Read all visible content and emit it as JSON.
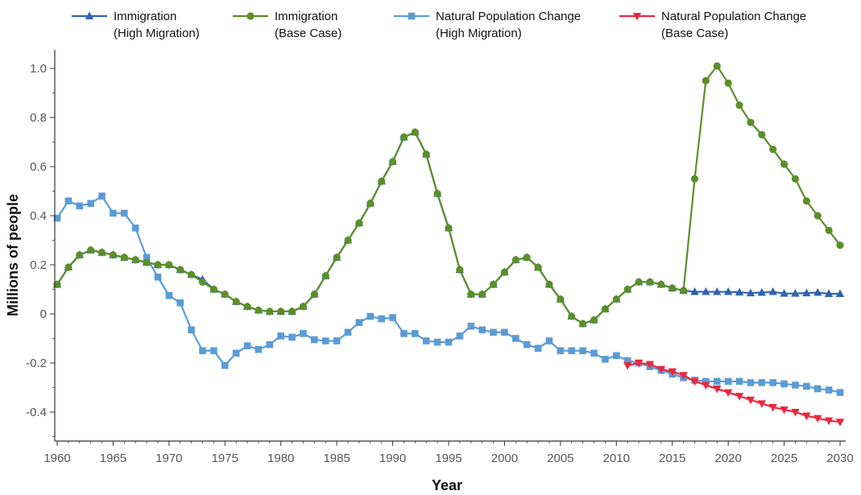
{
  "chart_data": {
    "type": "line",
    "title": "",
    "xlabel": "Year",
    "ylabel": "Millions of people",
    "xlim": [
      1960,
      2030
    ],
    "ylim": [
      -0.5,
      1.05
    ],
    "x_ticks": [
      1960,
      1965,
      1970,
      1975,
      1980,
      1985,
      1990,
      1995,
      2000,
      2005,
      2010,
      2015,
      2020,
      2025,
      2030
    ],
    "y_ticks": [
      -0.4,
      -0.2,
      0,
      0.2,
      0.4,
      0.6,
      0.8,
      1.0
    ],
    "y_tick_labels": [
      "-0.4",
      "-0.2",
      "0",
      "0.2",
      "0.4",
      "0.6",
      "0.8",
      "1.0"
    ],
    "grid": false,
    "legend_position": "top",
    "series": [
      {
        "name_lines": [
          "Immigration",
          "(High Migration)"
        ],
        "color": "#2e62b0",
        "marker": "triangle-up",
        "x": [
          1960,
          1961,
          1962,
          1963,
          1964,
          1965,
          1966,
          1967,
          1968,
          1969,
          1970,
          1971,
          1972,
          1973,
          1974,
          1975,
          1976,
          1977,
          1978,
          1979,
          1980,
          1981,
          1982,
          1983,
          1984,
          1985,
          1986,
          1987,
          1988,
          1989,
          1990,
          1991,
          1992,
          1993,
          1994,
          1995,
          1996,
          1997,
          1998,
          1999,
          2000,
          2001,
          2002,
          2003,
          2004,
          2005,
          2006,
          2007,
          2008,
          2009,
          2010,
          2011,
          2012,
          2013,
          2014,
          2015,
          2016,
          2017,
          2018,
          2019,
          2020,
          2021,
          2022,
          2023,
          2024,
          2025,
          2026,
          2027,
          2028,
          2029,
          2030
        ],
        "y": [
          0.12,
          0.19,
          0.24,
          0.26,
          0.25,
          0.24,
          0.23,
          0.22,
          0.21,
          0.2,
          0.2,
          0.18,
          0.16,
          0.14,
          0.1,
          0.08,
          0.05,
          0.03,
          0.015,
          0.01,
          0.01,
          0.01,
          0.03,
          0.08,
          0.155,
          0.23,
          0.3,
          0.37,
          0.45,
          0.54,
          0.62,
          0.72,
          0.74,
          0.65,
          0.49,
          0.35,
          0.18,
          0.08,
          0.08,
          0.12,
          0.17,
          0.22,
          0.23,
          0.19,
          0.12,
          0.06,
          -0.01,
          -0.04,
          -0.025,
          0.02,
          0.06,
          0.1,
          0.13,
          0.13,
          0.12,
          0.105,
          0.095,
          0.09,
          0.09,
          0.09,
          0.09,
          0.088,
          0.085,
          0.087,
          0.09,
          0.083,
          0.083,
          0.085,
          0.087,
          0.082,
          0.082
        ]
      },
      {
        "name_lines": [
          "Immigration",
          "(Base Case)"
        ],
        "color": "#5a8f29",
        "marker": "circle",
        "x": [
          1960,
          1961,
          1962,
          1963,
          1964,
          1965,
          1966,
          1967,
          1968,
          1969,
          1970,
          1971,
          1972,
          1973,
          1974,
          1975,
          1976,
          1977,
          1978,
          1979,
          1980,
          1981,
          1982,
          1983,
          1984,
          1985,
          1986,
          1987,
          1988,
          1989,
          1990,
          1991,
          1992,
          1993,
          1994,
          1995,
          1996,
          1997,
          1998,
          1999,
          2000,
          2001,
          2002,
          2003,
          2004,
          2005,
          2006,
          2007,
          2008,
          2009,
          2010,
          2011,
          2012,
          2013,
          2014,
          2015,
          2016,
          2017,
          2018,
          2019,
          2020,
          2021,
          2022,
          2023,
          2024,
          2025,
          2026,
          2027,
          2028,
          2029,
          2030
        ],
        "y": [
          0.12,
          0.19,
          0.24,
          0.26,
          0.25,
          0.24,
          0.23,
          0.22,
          0.21,
          0.2,
          0.2,
          0.18,
          0.16,
          0.13,
          0.1,
          0.08,
          0.05,
          0.03,
          0.015,
          0.01,
          0.01,
          0.01,
          0.03,
          0.08,
          0.155,
          0.23,
          0.3,
          0.37,
          0.45,
          0.54,
          0.62,
          0.72,
          0.74,
          0.65,
          0.49,
          0.35,
          0.18,
          0.08,
          0.08,
          0.12,
          0.17,
          0.22,
          0.23,
          0.19,
          0.12,
          0.06,
          -0.01,
          -0.04,
          -0.025,
          0.02,
          0.06,
          0.1,
          0.13,
          0.13,
          0.12,
          0.105,
          0.095,
          0.55,
          0.95,
          1.01,
          0.94,
          0.85,
          0.78,
          0.73,
          0.67,
          0.61,
          0.55,
          0.46,
          0.4,
          0.34,
          0.28
        ]
      },
      {
        "name_lines": [
          "Natural Population Change",
          "(High Migration)"
        ],
        "color": "#5b9bd5",
        "marker": "square",
        "x": [
          1960,
          1961,
          1962,
          1963,
          1964,
          1965,
          1966,
          1967,
          1968,
          1969,
          1970,
          1971,
          1972,
          1973,
          1974,
          1975,
          1976,
          1977,
          1978,
          1979,
          1980,
          1981,
          1982,
          1983,
          1984,
          1985,
          1986,
          1987,
          1988,
          1989,
          1990,
          1991,
          1992,
          1993,
          1994,
          1995,
          1996,
          1997,
          1998,
          1999,
          2000,
          2001,
          2002,
          2003,
          2004,
          2005,
          2006,
          2007,
          2008,
          2009,
          2010,
          2011,
          2012,
          2013,
          2014,
          2015,
          2016,
          2017,
          2018,
          2019,
          2020,
          2021,
          2022,
          2023,
          2024,
          2025,
          2026,
          2027,
          2028,
          2029,
          2030
        ],
        "y": [
          0.39,
          0.46,
          0.44,
          0.45,
          0.48,
          0.41,
          0.41,
          0.35,
          0.23,
          0.15,
          0.075,
          0.045,
          -0.065,
          -0.15,
          -0.15,
          -0.21,
          -0.16,
          -0.13,
          -0.145,
          -0.125,
          -0.09,
          -0.095,
          -0.08,
          -0.105,
          -0.11,
          -0.11,
          -0.075,
          -0.035,
          -0.01,
          -0.02,
          -0.015,
          -0.08,
          -0.08,
          -0.11,
          -0.115,
          -0.115,
          -0.09,
          -0.05,
          -0.065,
          -0.075,
          -0.075,
          -0.1,
          -0.125,
          -0.14,
          -0.11,
          -0.15,
          -0.15,
          -0.15,
          -0.16,
          -0.185,
          -0.17,
          -0.19,
          -0.2,
          -0.215,
          -0.23,
          -0.245,
          -0.26,
          -0.27,
          -0.275,
          -0.275,
          -0.275,
          -0.275,
          -0.28,
          -0.28,
          -0.28,
          -0.285,
          -0.29,
          -0.295,
          -0.305,
          -0.31,
          -0.32
        ]
      },
      {
        "name_lines": [
          "Natural Population Change",
          "(Base Case)"
        ],
        "color": "#e8283e",
        "marker": "triangle-down",
        "x": [
          2011,
          2012,
          2013,
          2014,
          2015,
          2016,
          2017,
          2018,
          2019,
          2020,
          2021,
          2022,
          2023,
          2024,
          2025,
          2026,
          2027,
          2028,
          2029,
          2030
        ],
        "y": [
          -0.21,
          -0.2,
          -0.205,
          -0.225,
          -0.235,
          -0.25,
          -0.275,
          -0.29,
          -0.305,
          -0.32,
          -0.335,
          -0.35,
          -0.365,
          -0.38,
          -0.39,
          -0.4,
          -0.415,
          -0.425,
          -0.435,
          -0.44
        ]
      }
    ]
  }
}
